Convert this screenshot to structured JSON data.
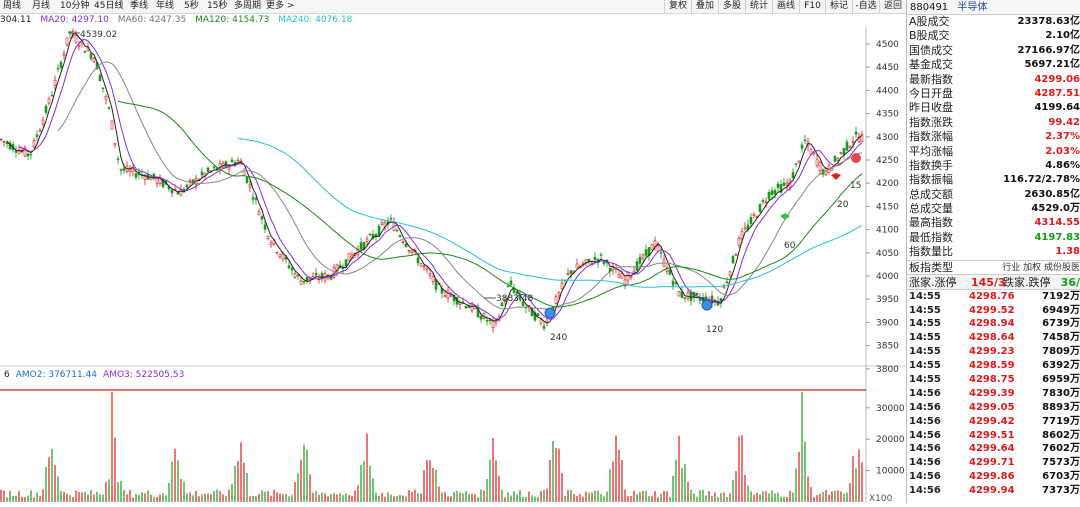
{
  "toolbar": {
    "periods": [
      "周线",
      "月线",
      "10分钟",
      "45日线",
      "季线",
      "年线",
      "5秒",
      "15秒",
      "多周期",
      "更多 >"
    ],
    "buttons": [
      "复权",
      "叠加",
      "多股",
      "统计",
      "画线",
      "F10",
      "标记",
      "-自选",
      "返回"
    ]
  },
  "ma_legend": [
    {
      "text": "304.11",
      "color": "#222222"
    },
    {
      "text": "MA20: 4297.10",
      "color": "#8a2be2"
    },
    {
      "text": "MA60: 4247.35",
      "color": "#777777"
    },
    {
      "text": "MA120: 4154.73",
      "color": "#1a8a1a"
    },
    {
      "text": "MA240: 4076.18",
      "color": "#25c0d8"
    }
  ],
  "price_axis": [
    "4500",
    "4450",
    "4400",
    "4350",
    "4300",
    "4250",
    "4200",
    "4150",
    "4100",
    "4050",
    "4000",
    "3950",
    "3900",
    "3850",
    "3800"
  ],
  "annotations": {
    "high": "4539.02",
    "low": "3883.48",
    "cross_240": "240",
    "cross_120": "120",
    "ma_15": "15",
    "ma_20": "20",
    "ma_60": "60"
  },
  "volume_legend": [
    {
      "text": "6",
      "color": "#222222"
    },
    {
      "text": "AMO2: 376711.44",
      "color": "#1e6ec8"
    },
    {
      "text": "AMO3: 522505.53",
      "color": "#8a2be2"
    }
  ],
  "volume_axis": [
    "30000",
    "20000",
    "10000"
  ],
  "volume_unit": "X100",
  "colors": {
    "up": "#e01b1b",
    "down": "#1a9a1a",
    "ma5": "#222222",
    "ma20": "#8a2be2",
    "ma60": "#888888",
    "ma120": "#1a8a1a",
    "ma240": "#25c0d8"
  },
  "right_panel": {
    "code": "880491",
    "name": "半导体",
    "stats": [
      {
        "label": "A股成交",
        "value": "23378.63亿",
        "color": "#111111"
      },
      {
        "label": "B股成交",
        "value": "2.10亿",
        "color": "#111111"
      },
      {
        "label": "国债成交",
        "value": "27166.97亿",
        "color": "#111111"
      },
      {
        "label": "基金成交",
        "value": "5697.21亿",
        "color": "#111111"
      },
      {
        "label": "最新指数",
        "value": "4299.06",
        "color": "#e01b1b"
      },
      {
        "label": "今日开盘",
        "value": "4287.51",
        "color": "#e01b1b"
      },
      {
        "label": "昨日收盘",
        "value": "4199.64",
        "color": "#111111"
      },
      {
        "label": "指数涨跌",
        "value": "99.42",
        "color": "#e01b1b"
      },
      {
        "label": "指数涨幅",
        "value": "2.37%",
        "color": "#e01b1b"
      },
      {
        "label": "平均涨幅",
        "value": "2.03%",
        "color": "#e01b1b"
      },
      {
        "label": "指数换手",
        "value": "4.86%",
        "color": "#111111"
      },
      {
        "label": "指数振幅",
        "value": "116.72/2.78%",
        "color": "#111111"
      },
      {
        "label": "总成交额",
        "value": "2630.85亿",
        "color": "#111111"
      },
      {
        "label": "总成交量",
        "value": "4529.0万",
        "color": "#111111"
      },
      {
        "label": "最高指数",
        "value": "4314.55",
        "color": "#e01b1b"
      },
      {
        "label": "最低指数",
        "value": "4197.83",
        "color": "#1a9a1a"
      },
      {
        "label": "指数量比",
        "value": "1.38",
        "color": "#e01b1b"
      }
    ],
    "board_type_label": "板指类型",
    "board_tags": "行业 加权 成份股医",
    "adv_label": "涨家.涨停",
    "adv_value": "145/3",
    "dec_label": "跌家.跌停",
    "dec_value": "36/",
    "ticks": [
      {
        "time": "14:55",
        "price": "4298.76",
        "vol": "7192万"
      },
      {
        "time": "14:55",
        "price": "4299.52",
        "vol": "6949万"
      },
      {
        "time": "14:55",
        "price": "4298.94",
        "vol": "6739万"
      },
      {
        "time": "14:55",
        "price": "4298.64",
        "vol": "7458万"
      },
      {
        "time": "14:55",
        "price": "4299.23",
        "vol": "7809万"
      },
      {
        "time": "14:55",
        "price": "4298.59",
        "vol": "6392万"
      },
      {
        "time": "14:55",
        "price": "4298.75",
        "vol": "6959万"
      },
      {
        "time": "14:56",
        "price": "4299.39",
        "vol": "7830万"
      },
      {
        "time": "14:56",
        "price": "4299.05",
        "vol": "8893万"
      },
      {
        "time": "14:56",
        "price": "4299.42",
        "vol": "7719万"
      },
      {
        "time": "14:56",
        "price": "4299.51",
        "vol": "8602万"
      },
      {
        "time": "14:56",
        "price": "4299.64",
        "vol": "7602万"
      },
      {
        "time": "14:56",
        "price": "4299.71",
        "vol": "7573万"
      },
      {
        "time": "14:56",
        "price": "4299.86",
        "vol": "6703万"
      },
      {
        "time": "14:56",
        "price": "4299.94",
        "vol": "7373万"
      }
    ]
  }
}
